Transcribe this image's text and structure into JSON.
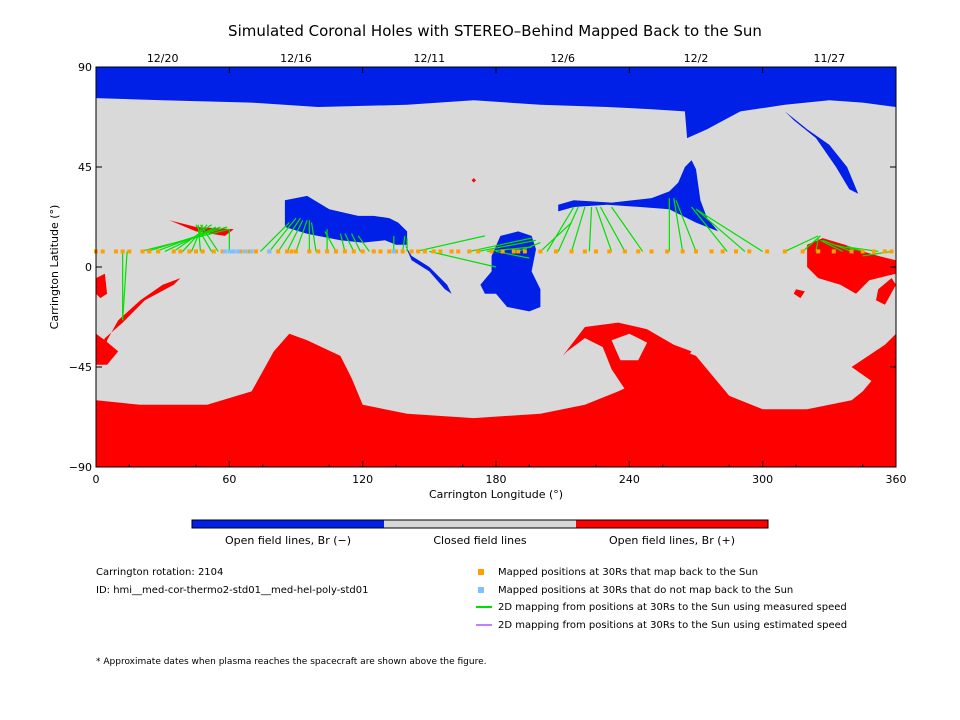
{
  "chart_data": {
    "type": "map",
    "title": "Simulated Coronal Holes with STEREO–Behind Mapped Back to the Sun",
    "xlabel": "Carrington Longitude (°)",
    "ylabel": "Carrington Latitude (°)",
    "xlim": [
      0,
      360
    ],
    "ylim": [
      -90,
      90
    ],
    "xticks": [
      0,
      60,
      120,
      180,
      240,
      300,
      360
    ],
    "yticks": [
      90,
      45,
      0,
      -45,
      -90
    ],
    "top_axis_dates": [
      {
        "label": "12/20",
        "lon": 30
      },
      {
        "label": "12/16",
        "lon": 90
      },
      {
        "label": "12/11",
        "lon": 150
      },
      {
        "label": "12/6",
        "lon": 210
      },
      {
        "label": "12/2",
        "lon": 270
      },
      {
        "label": "11/27",
        "lon": 330
      }
    ],
    "background_color": "#d9d9d9",
    "colors": {
      "open_negative": "#0020e8",
      "closed": "#d9d9d9",
      "open_positive": "#ff0000",
      "mapped_back": "#ffa000",
      "not_mapped": "#80c0ff",
      "measured_speed": "#00e000",
      "estimated_speed": "#c080ff"
    },
    "regions": {
      "negative_polar_cap": [
        [
          0,
          76
        ],
        [
          30,
          75
        ],
        [
          70,
          74
        ],
        [
          100,
          72
        ],
        [
          140,
          73
        ],
        [
          170,
          75
        ],
        [
          200,
          73
        ],
        [
          230,
          72
        ],
        [
          250,
          71
        ],
        [
          265,
          70
        ],
        [
          266,
          58
        ],
        [
          275,
          62
        ],
        [
          290,
          70
        ],
        [
          310,
          73
        ],
        [
          330,
          75
        ],
        [
          345,
          74
        ],
        [
          360,
          72
        ],
        [
          360,
          90
        ],
        [
          0,
          90
        ]
      ],
      "negative_north_lobe": [
        [
          310,
          70
        ],
        [
          320,
          62
        ],
        [
          330,
          55
        ],
        [
          338,
          45
        ],
        [
          343,
          33
        ],
        [
          339,
          35
        ],
        [
          333,
          45
        ],
        [
          324,
          58
        ],
        [
          314,
          66
        ]
      ],
      "positive_polar_cap": [
        [
          0,
          -60
        ],
        [
          20,
          -62
        ],
        [
          50,
          -62
        ],
        [
          70,
          -56
        ],
        [
          80,
          -38
        ],
        [
          87,
          -30
        ],
        [
          95,
          -33
        ],
        [
          110,
          -40
        ],
        [
          115,
          -50
        ],
        [
          120,
          -62
        ],
        [
          140,
          -66
        ],
        [
          170,
          -68
        ],
        [
          200,
          -66
        ],
        [
          220,
          -62
        ],
        [
          235,
          -56
        ],
        [
          248,
          -50
        ],
        [
          255,
          -42
        ],
        [
          262,
          -37
        ],
        [
          270,
          -40
        ],
        [
          285,
          -58
        ],
        [
          300,
          -64
        ],
        [
          320,
          -64
        ],
        [
          340,
          -60
        ],
        [
          345,
          -56
        ],
        [
          355,
          -44
        ],
        [
          360,
          -40
        ],
        [
          360,
          -90
        ],
        [
          0,
          -90
        ]
      ],
      "positive_south_loop_outer": [
        [
          210,
          -40
        ],
        [
          220,
          -27
        ],
        [
          235,
          -25
        ],
        [
          248,
          -28
        ],
        [
          260,
          -35
        ],
        [
          268,
          -38
        ],
        [
          260,
          -48
        ],
        [
          250,
          -54
        ],
        [
          240,
          -58
        ],
        [
          232,
          -46
        ],
        [
          228,
          -36
        ],
        [
          220,
          -32
        ],
        [
          212,
          -38
        ]
      ],
      "positive_south_loop_inner": [
        [
          232,
          -33
        ],
        [
          240,
          -30
        ],
        [
          248,
          -34
        ],
        [
          244,
          -42
        ],
        [
          236,
          -42
        ]
      ],
      "positive_west_edge": [
        [
          0,
          -30
        ],
        [
          4,
          -33
        ],
        [
          10,
          -38
        ],
        [
          5,
          -44
        ],
        [
          0,
          -44
        ]
      ],
      "positive_right_edge": [
        [
          340,
          -45
        ],
        [
          355,
          -35
        ],
        [
          360,
          -30
        ],
        [
          360,
          -55
        ],
        [
          350,
          -52
        ]
      ],
      "negative_band_1": [
        [
          85,
          30
        ],
        [
          95,
          32
        ],
        [
          105,
          26
        ],
        [
          118,
          23
        ],
        [
          125,
          23
        ],
        [
          132,
          22
        ],
        [
          136,
          20
        ],
        [
          140,
          16
        ],
        [
          140,
          10
        ],
        [
          135,
          10
        ],
        [
          130,
          12
        ],
        [
          120,
          11
        ],
        [
          110,
          12
        ],
        [
          95,
          15
        ],
        [
          85,
          18
        ]
      ],
      "negative_band_2": [
        [
          208,
          28
        ],
        [
          215,
          30
        ],
        [
          232,
          29
        ],
        [
          250,
          31
        ],
        [
          258,
          34
        ],
        [
          262,
          38
        ],
        [
          265,
          45
        ],
        [
          268,
          48
        ],
        [
          270,
          44
        ],
        [
          272,
          30
        ],
        [
          275,
          22
        ],
        [
          280,
          16
        ],
        [
          270,
          20
        ],
        [
          258,
          26
        ],
        [
          245,
          27
        ],
        [
          230,
          28
        ],
        [
          215,
          27
        ],
        [
          208,
          25
        ]
      ],
      "negative_center_blob": [
        [
          178,
          5
        ],
        [
          182,
          14
        ],
        [
          190,
          16
        ],
        [
          196,
          14
        ],
        [
          198,
          8
        ],
        [
          196,
          -2
        ],
        [
          200,
          -10
        ],
        [
          200,
          -18
        ],
        [
          195,
          -20
        ],
        [
          185,
          -18
        ],
        [
          180,
          -12
        ],
        [
          175,
          -12
        ],
        [
          173,
          -8
        ],
        [
          178,
          -2
        ]
      ],
      "negative_small_drip": [
        [
          139,
          10
        ],
        [
          142,
          5
        ],
        [
          150,
          0
        ],
        [
          158,
          -8
        ],
        [
          160,
          -12
        ],
        [
          157,
          -10
        ],
        [
          150,
          -2
        ],
        [
          142,
          3
        ]
      ],
      "positive_wedge": [
        [
          33,
          21
        ],
        [
          45,
          18
        ],
        [
          62,
          17
        ],
        [
          58,
          14
        ],
        [
          45,
          16
        ]
      ],
      "positive_west_spot": [
        [
          0,
          -5
        ],
        [
          4,
          -3
        ],
        [
          5,
          -12
        ],
        [
          2,
          -14
        ],
        [
          0,
          -12
        ]
      ],
      "positive_right_cluster": [
        [
          320,
          10
        ],
        [
          327,
          13
        ],
        [
          337,
          10
        ],
        [
          345,
          7
        ],
        [
          352,
          5
        ],
        [
          360,
          3
        ],
        [
          360,
          -3
        ],
        [
          348,
          -6
        ],
        [
          342,
          -12
        ],
        [
          335,
          -8
        ],
        [
          325,
          -5
        ],
        [
          320,
          0
        ]
      ],
      "positive_right_curl": [
        [
          352,
          -10
        ],
        [
          358,
          -5
        ],
        [
          360,
          -8
        ],
        [
          355,
          -17
        ],
        [
          351,
          -15
        ]
      ],
      "positive_left_hook": [
        [
          0,
          -40
        ],
        [
          4,
          -32
        ],
        [
          12,
          -25
        ],
        [
          22,
          -15
        ],
        [
          35,
          -8
        ],
        [
          38,
          -5
        ],
        [
          30,
          -8
        ],
        [
          20,
          -15
        ],
        [
          10,
          -24
        ],
        [
          5,
          -33
        ],
        [
          3,
          -42
        ]
      ],
      "positive_tiny_1": [
        [
          169,
          39
        ],
        [
          170,
          40
        ],
        [
          171,
          39
        ],
        [
          170,
          38
        ]
      ],
      "positive_tiny_2": [
        [
          315,
          -10
        ],
        [
          319,
          -11
        ],
        [
          317,
          -14
        ],
        [
          314,
          -12
        ]
      ]
    },
    "mapped_points": {
      "lat": 7,
      "mapped_back_lons": [
        0,
        3,
        9,
        12,
        15,
        21,
        24,
        28,
        35,
        38,
        42,
        45,
        48,
        53,
        57,
        65,
        69,
        72,
        78,
        82,
        86,
        88,
        90,
        96,
        100,
        104,
        108,
        112,
        116,
        120,
        125,
        128,
        132,
        135,
        138,
        142,
        145,
        148,
        152,
        155,
        160,
        163,
        168,
        172,
        178,
        183,
        188,
        190,
        193,
        200,
        207,
        214,
        220,
        225,
        231,
        238,
        244,
        250,
        257,
        264,
        270,
        277,
        282,
        288,
        294,
        302,
        310,
        318,
        325,
        332,
        340,
        345,
        350,
        355,
        358
      ],
      "not_mapped_lons": [
        58,
        60,
        61,
        62,
        64,
        67,
        70,
        78,
        134
      ]
    },
    "measured_speed_lines": [
      [
        [
          12,
          7
        ],
        [
          12,
          -24
        ]
      ],
      [
        [
          14,
          7
        ],
        [
          12,
          -24
        ]
      ],
      [
        [
          20,
          7
        ],
        [
          60,
          17
        ]
      ],
      [
        [
          23,
          7
        ],
        [
          59,
          18
        ]
      ],
      [
        [
          27,
          7
        ],
        [
          56,
          18
        ]
      ],
      [
        [
          31,
          7
        ],
        [
          54,
          18
        ]
      ],
      [
        [
          35,
          7
        ],
        [
          52,
          19
        ]
      ],
      [
        [
          39,
          7
        ],
        [
          50,
          19
        ]
      ],
      [
        [
          43,
          7
        ],
        [
          48,
          19
        ]
      ],
      [
        [
          47,
          7
        ],
        [
          46,
          19
        ]
      ],
      [
        [
          52,
          7
        ],
        [
          45,
          19
        ]
      ],
      [
        [
          55,
          7
        ],
        [
          47,
          19
        ]
      ],
      [
        [
          60,
          7
        ],
        [
          60,
          17
        ]
      ],
      [
        [
          74,
          7
        ],
        [
          87,
          20
        ]
      ],
      [
        [
          78,
          7
        ],
        [
          90,
          22
        ]
      ],
      [
        [
          82,
          7
        ],
        [
          92,
          22
        ]
      ],
      [
        [
          86,
          7
        ],
        [
          93,
          21
        ]
      ],
      [
        [
          90,
          7
        ],
        [
          95,
          21
        ]
      ],
      [
        [
          96,
          7
        ],
        [
          96,
          21
        ]
      ],
      [
        [
          99,
          7
        ],
        [
          97,
          20
        ]
      ],
      [
        [
          104,
          7
        ],
        [
          104,
          17
        ]
      ],
      [
        [
          108,
          7
        ],
        [
          103,
          16
        ]
      ],
      [
        [
          112,
          7
        ],
        [
          110,
          15
        ]
      ],
      [
        [
          116,
          7
        ],
        [
          112,
          15
        ]
      ],
      [
        [
          119,
          7
        ],
        [
          115,
          15
        ]
      ],
      [
        [
          123,
          7
        ],
        [
          118,
          14
        ]
      ],
      [
        [
          134,
          7
        ],
        [
          134,
          14
        ]
      ],
      [
        [
          138,
          7
        ],
        [
          139,
          14
        ]
      ],
      [
        [
          140,
          7
        ],
        [
          140,
          13
        ]
      ],
      [
        [
          144,
          7
        ],
        [
          175,
          14
        ]
      ],
      [
        [
          168,
          7
        ],
        [
          196,
          13
        ]
      ],
      [
        [
          172,
          7
        ],
        [
          198,
          12
        ]
      ],
      [
        [
          176,
          7
        ],
        [
          196,
          9
        ]
      ],
      [
        [
          180,
          7
        ],
        [
          195,
          4
        ]
      ],
      [
        [
          150,
          7
        ],
        [
          180,
          0
        ]
      ],
      [
        [
          190,
          7
        ],
        [
          200,
          11
        ]
      ],
      [
        [
          200,
          7
        ],
        [
          214,
          20
        ]
      ],
      [
        [
          203,
          7
        ],
        [
          215,
          27
        ]
      ],
      [
        [
          208,
          7
        ],
        [
          217,
          27
        ]
      ],
      [
        [
          214,
          7
        ],
        [
          220,
          27
        ]
      ],
      [
        [
          222,
          7
        ],
        [
          223,
          27
        ]
      ],
      [
        [
          232,
          7
        ],
        [
          225,
          27
        ]
      ],
      [
        [
          238,
          7
        ],
        [
          227,
          27
        ]
      ],
      [
        [
          246,
          7
        ],
        [
          232,
          27
        ]
      ],
      [
        [
          258,
          7
        ],
        [
          258,
          31
        ]
      ],
      [
        [
          264,
          7
        ],
        [
          260,
          31
        ]
      ],
      [
        [
          270,
          7
        ],
        [
          261,
          30
        ]
      ],
      [
        [
          284,
          7
        ],
        [
          268,
          27
        ]
      ],
      [
        [
          292,
          7
        ],
        [
          270,
          26
        ]
      ],
      [
        [
          300,
          7
        ],
        [
          270,
          26
        ]
      ],
      [
        [
          310,
          7
        ],
        [
          325,
          14
        ]
      ],
      [
        [
          318,
          7
        ],
        [
          326,
          14
        ]
      ],
      [
        [
          324,
          7
        ],
        [
          325,
          13
        ]
      ],
      [
        [
          336,
          7
        ],
        [
          326,
          12
        ]
      ],
      [
        [
          340,
          7
        ],
        [
          327,
          12
        ]
      ],
      [
        [
          346,
          7
        ],
        [
          332,
          10
        ]
      ],
      [
        [
          352,
          7
        ],
        [
          338,
          9
        ]
      ],
      [
        [
          358,
          7
        ],
        [
          345,
          5
        ]
      ]
    ]
  },
  "colorbar": {
    "segments": [
      {
        "label": "Open field lines, Br (−)",
        "color": "#0020e8"
      },
      {
        "label": "Closed field lines",
        "color": "#d9d9d9"
      },
      {
        "label": "Open field lines, Br (+)",
        "color": "#ff0000"
      }
    ]
  },
  "info": {
    "rotation": "Carrington rotation: 2104",
    "id": "ID: hmi__med-cor-thermo2-std01__med-hel-poly-std01"
  },
  "key": {
    "mapped_back": "Mapped positions at 30Rs that map back to the Sun",
    "not_mapped": "Mapped positions at 30Rs that do not map back to the Sun",
    "measured": "2D mapping from positions at 30Rs to the Sun using measured speed",
    "estimated": "2D mapping from positions at 30Rs to the Sun using estimated speed"
  },
  "footnote": "* Approximate dates when plasma reaches the spacecraft are shown above the figure."
}
